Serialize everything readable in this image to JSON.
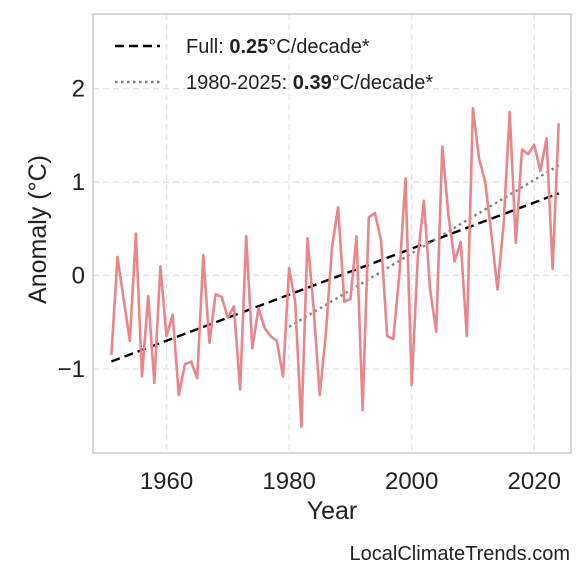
{
  "chart_data": {
    "type": "line",
    "xlabel": "Year",
    "ylabel": "Anomaly (°C)",
    "xlim": [
      1948,
      2026
    ],
    "ylim": [
      -1.9,
      2.8
    ],
    "xticks": [
      1960,
      1980,
      2000,
      2020
    ],
    "yticks": [
      -1,
      0,
      1,
      2
    ],
    "ytick_labels": [
      "−1",
      "0",
      "1",
      "2"
    ],
    "grid": true,
    "legend_position": "top-left",
    "series": [
      {
        "color": "#e8868b",
        "x": [
          1951,
          1952,
          1953,
          1954,
          1955,
          1956,
          1957,
          1958,
          1959,
          1960,
          1961,
          1962,
          1963,
          1964,
          1965,
          1966,
          1967,
          1968,
          1969,
          1970,
          1971,
          1972,
          1973,
          1974,
          1975,
          1976,
          1977,
          1978,
          1979,
          1980,
          1981,
          1982,
          1983,
          1984,
          1985,
          1986,
          1987,
          1988,
          1989,
          1990,
          1991,
          1992,
          1993,
          1994,
          1995,
          1996,
          1997,
          1998,
          1999,
          2000,
          2001,
          2002,
          2003,
          2004,
          2005,
          2006,
          2007,
          2008,
          2009,
          2010,
          2011,
          2012,
          2013,
          2014,
          2015,
          2016,
          2017,
          2018,
          2019,
          2020,
          2021,
          2022,
          2023,
          2024
        ],
        "y": [
          -0.85,
          0.2,
          -0.25,
          -0.7,
          0.45,
          -1.08,
          -0.22,
          -1.15,
          0.1,
          -0.65,
          -0.42,
          -1.28,
          -0.95,
          -0.92,
          -1.1,
          0.22,
          -0.72,
          -0.2,
          -0.23,
          -0.45,
          -0.33,
          -1.22,
          0.42,
          -0.78,
          -0.35,
          -0.56,
          -0.65,
          -0.7,
          -1.08,
          0.08,
          -0.28,
          -1.62,
          0.4,
          -0.35,
          -1.28,
          -0.62,
          0.3,
          0.73,
          -0.28,
          -0.25,
          0.42,
          -1.44,
          0.62,
          0.67,
          0.38,
          -0.65,
          -0.68,
          0.02,
          1.04,
          -1.17,
          0.2,
          0.8,
          -0.15,
          -0.6,
          1.38,
          0.65,
          0.15,
          0.36,
          -0.65,
          1.79,
          1.25,
          1.0,
          0.45,
          -0.15,
          0.55,
          1.75,
          0.35,
          1.35,
          1.3,
          1.4,
          1.12,
          1.47,
          0.07,
          1.63
        ]
      }
    ],
    "trend_lines": [
      {
        "label_prefix": "Full: ",
        "label_value": "0.25",
        "label_suffix": "°C/decade*",
        "style": "dashed",
        "color": "#000000",
        "x": [
          1951,
          2024
        ],
        "y": [
          -0.92,
          0.88
        ]
      },
      {
        "label_prefix": "1980-2025: ",
        "label_value": "0.39",
        "label_suffix": "°C/decade*",
        "style": "dotted",
        "color": "#808080",
        "x": [
          1980,
          2024
        ],
        "y": [
          -0.55,
          1.18
        ]
      }
    ]
  },
  "footer": "LocalClimateTrends.com"
}
